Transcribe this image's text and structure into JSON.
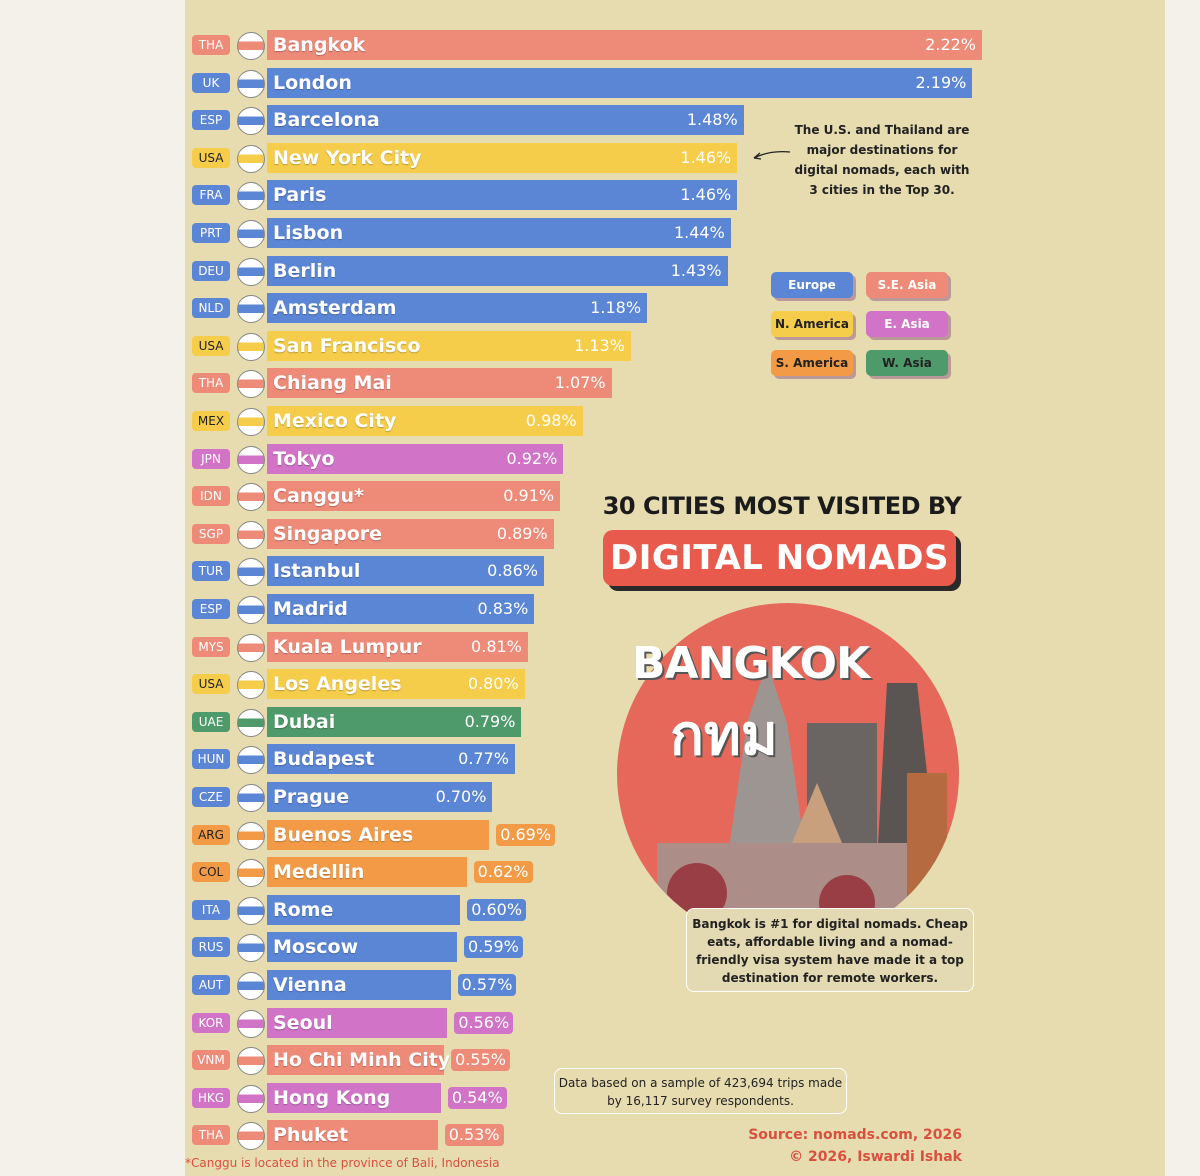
{
  "chart_data": {
    "type": "bar",
    "orientation": "horizontal",
    "title": "30 CITIES MOST VISITED BY",
    "subtitle": "DIGITAL NOMADS",
    "value_format": "percent",
    "legend": [
      {
        "name": "Europe",
        "color": "#5b86d6"
      },
      {
        "name": "S.E. Asia",
        "color": "#ee8a78"
      },
      {
        "name": "N. America",
        "color": "#f5cd4a"
      },
      {
        "name": "E. Asia",
        "color": "#d173c7"
      },
      {
        "name": "S. America",
        "color": "#f29a45"
      },
      {
        "name": "W. Asia",
        "color": "#4e9a6a"
      }
    ],
    "bars": [
      {
        "code": "THA",
        "city": "Bangkok",
        "value": 2.22,
        "region": "S.E. Asia"
      },
      {
        "code": "UK",
        "city": "London",
        "value": 2.19,
        "region": "Europe"
      },
      {
        "code": "ESP",
        "city": "Barcelona",
        "value": 1.48,
        "region": "Europe"
      },
      {
        "code": "USA",
        "city": "New York City",
        "value": 1.46,
        "region": "N. America"
      },
      {
        "code": "FRA",
        "city": "Paris",
        "value": 1.46,
        "region": "Europe"
      },
      {
        "code": "PRT",
        "city": "Lisbon",
        "value": 1.44,
        "region": "Europe"
      },
      {
        "code": "DEU",
        "city": "Berlin",
        "value": 1.43,
        "region": "Europe"
      },
      {
        "code": "NLD",
        "city": "Amsterdam",
        "value": 1.18,
        "region": "Europe"
      },
      {
        "code": "USA",
        "city": "San Francisco",
        "value": 1.13,
        "region": "N. America"
      },
      {
        "code": "THA",
        "city": "Chiang Mai",
        "value": 1.07,
        "region": "S.E. Asia"
      },
      {
        "code": "MEX",
        "city": "Mexico City",
        "value": 0.98,
        "region": "N. America"
      },
      {
        "code": "JPN",
        "city": "Tokyo",
        "value": 0.92,
        "region": "E. Asia"
      },
      {
        "code": "IDN",
        "city": "Canggu*",
        "value": 0.91,
        "region": "S.E. Asia"
      },
      {
        "code": "SGP",
        "city": "Singapore",
        "value": 0.89,
        "region": "S.E. Asia"
      },
      {
        "code": "TUR",
        "city": "Istanbul",
        "value": 0.86,
        "region": "Europe"
      },
      {
        "code": "ESP",
        "city": "Madrid",
        "value": 0.83,
        "region": "Europe"
      },
      {
        "code": "MYS",
        "city": "Kuala Lumpur",
        "value": 0.81,
        "region": "S.E. Asia"
      },
      {
        "code": "USA",
        "city": "Los Angeles",
        "value": 0.8,
        "region": "N. America"
      },
      {
        "code": "UAE",
        "city": "Dubai",
        "value": 0.79,
        "region": "W. Asia"
      },
      {
        "code": "HUN",
        "city": "Budapest",
        "value": 0.77,
        "region": "Europe"
      },
      {
        "code": "CZE",
        "city": "Prague",
        "value": 0.7,
        "region": "Europe"
      },
      {
        "code": "ARG",
        "city": "Buenos Aires",
        "value": 0.69,
        "region": "S. America"
      },
      {
        "code": "COL",
        "city": "Medellin",
        "value": 0.62,
        "region": "S. America"
      },
      {
        "code": "ITA",
        "city": "Rome",
        "value": 0.6,
        "region": "Europe"
      },
      {
        "code": "RUS",
        "city": "Moscow",
        "value": 0.59,
        "region": "Europe"
      },
      {
        "code": "AUT",
        "city": "Vienna",
        "value": 0.57,
        "region": "Europe"
      },
      {
        "code": "KOR",
        "city": "Seoul",
        "value": 0.56,
        "region": "E. Asia"
      },
      {
        "code": "VNM",
        "city": "Ho Chi Minh City",
        "value": 0.55,
        "region": "S.E. Asia"
      },
      {
        "code": "HKG",
        "city": "Hong Kong",
        "value": 0.54,
        "region": "E. Asia"
      },
      {
        "code": "THA",
        "city": "Phuket",
        "value": 0.53,
        "region": "S.E. Asia"
      }
    ]
  },
  "annotations": {
    "top_note": "The U.S. and Thailand are major destinations for digital nomads, each with 3 cities in the Top 30.",
    "feature_title": "BANGKOK",
    "feature_thai": "กทม",
    "feature_callout": "Bangkok is #1 for digital nomads. Cheap eats, affordable living and a nomad-friendly visa system have made it a top destination for remote workers.",
    "data_note": "Data based on a sample of 423,694 trips made by 16,117 survey respondents.",
    "source": "Source: nomads.com, 2026",
    "credit": "© 2026, Iswardi Ishak",
    "footnote": "*Canggu is located in the province of Bali, Indonesia"
  }
}
